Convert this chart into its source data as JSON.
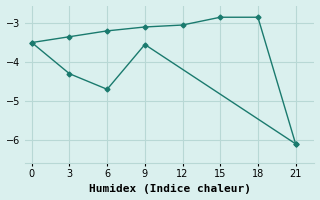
{
  "xlabel": "Humidex (Indice chaleur)",
  "line1_x": [
    0,
    3,
    6,
    9,
    12,
    15,
    18,
    21
  ],
  "line1_y": [
    -3.5,
    -3.35,
    -3.2,
    -3.1,
    -3.05,
    -2.85,
    -2.85,
    -6.1
  ],
  "line2_x": [
    0,
    3,
    6,
    9,
    21
  ],
  "line2_y": [
    -3.5,
    -4.3,
    -4.7,
    -3.55,
    -6.1
  ],
  "line_color": "#1a7a6e",
  "bg_color": "#daf0ee",
  "grid_color": "#b8d8d5",
  "marker": "D",
  "markersize": 2.5,
  "linewidth": 1.0,
  "ylim": [
    -6.6,
    -2.55
  ],
  "xlim": [
    -0.5,
    22.5
  ],
  "yticks": [
    -6,
    -5,
    -4,
    -3
  ],
  "xticks": [
    0,
    3,
    6,
    9,
    12,
    15,
    18,
    21
  ],
  "tick_fontsize": 7,
  "label_fontsize": 8
}
